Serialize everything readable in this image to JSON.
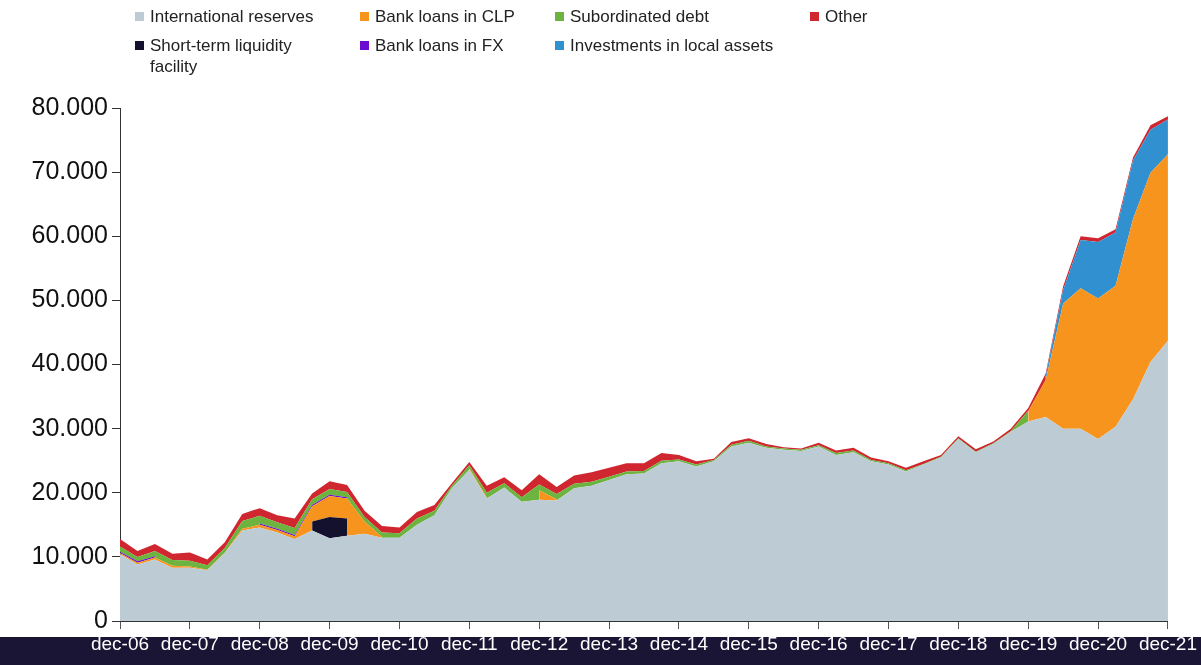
{
  "chart_data": {
    "type": "area",
    "stacked": true,
    "marker": "none",
    "grid": false,
    "legend": "top left",
    "categories": [
      "dec-06",
      null,
      null,
      null,
      "dec-07",
      null,
      null,
      null,
      "dec-08",
      null,
      null,
      null,
      "dec-09",
      null,
      null,
      null,
      "dec-10",
      null,
      null,
      null,
      "dec-11",
      null,
      null,
      null,
      "dec-12",
      null,
      null,
      null,
      "dec-13",
      null,
      null,
      null,
      "dec-14",
      null,
      null,
      null,
      "dec-15",
      null,
      null,
      null,
      "dec-16",
      null,
      null,
      null,
      "dec-17",
      null,
      null,
      null,
      "dec-18",
      null,
      null,
      null,
      "dec-19",
      null,
      null,
      null,
      "dec-20",
      null,
      null,
      null,
      "dec-21"
    ],
    "ylim": [
      0,
      80000
    ],
    "yticks": [
      {
        "value": 0,
        "label": "0"
      },
      {
        "value": 10000,
        "label": "10.000"
      },
      {
        "value": 20000,
        "label": "20.000"
      },
      {
        "value": 30000,
        "label": "30.000"
      },
      {
        "value": 40000,
        "label": "40.000"
      },
      {
        "value": 50000,
        "label": "50.000"
      },
      {
        "value": 60000,
        "label": "60.000"
      },
      {
        "value": 70000,
        "label": "70.000"
      },
      {
        "value": 80000,
        "label": "80.000"
      }
    ],
    "series": [
      {
        "name": "International reserves",
        "color": "#bdcbd5",
        "values": [
          10400,
          8800,
          9600,
          8300,
          8300,
          7900,
          10600,
          14100,
          14600,
          13800,
          12800,
          14100,
          12900,
          13300,
          13600,
          13000,
          13000,
          15000,
          16500,
          20700,
          23600,
          19100,
          20800,
          18600,
          18900,
          18800,
          20700,
          21100,
          22000,
          22900,
          23000,
          24600,
          24900,
          24100,
          24900,
          27200,
          27800,
          27000,
          26700,
          26500,
          27200,
          25900,
          26300,
          24900,
          24400,
          23300,
          24400,
          25500,
          28400,
          26300,
          27600,
          29500,
          31100,
          31800,
          30000,
          30000,
          28400,
          30300,
          34600,
          40400,
          43700
        ]
      },
      {
        "name": "Short-term liquidity facility",
        "color": "#14112e",
        "values": [
          null,
          null,
          null,
          null,
          null,
          null,
          null,
          null,
          null,
          null,
          null,
          1400,
          3300,
          2700,
          null,
          null,
          null,
          null,
          null,
          null,
          null,
          null,
          null,
          null,
          null,
          null,
          null,
          null,
          null,
          null,
          null,
          null,
          null,
          null,
          null,
          null,
          null,
          null,
          null,
          null,
          null,
          null,
          null,
          null,
          null,
          null,
          null,
          null,
          null,
          null,
          null,
          null,
          null,
          null,
          null,
          null,
          null,
          null,
          null,
          null,
          null
        ]
      },
      {
        "name": "Bank loans in CLP",
        "color": "#f7941d",
        "values": [
          200,
          300,
          300,
          300,
          200,
          100,
          100,
          300,
          400,
          400,
          400,
          2400,
          3300,
          3100,
          1900,
          100,
          null,
          null,
          null,
          null,
          200,
          200,
          null,
          null,
          1500,
          200,
          null,
          null,
          null,
          null,
          null,
          null,
          null,
          null,
          null,
          null,
          null,
          null,
          null,
          null,
          null,
          null,
          null,
          null,
          null,
          null,
          null,
          null,
          null,
          null,
          null,
          null,
          1600,
          5800,
          19500,
          21900,
          21900,
          22000,
          28100,
          29500,
          29100
        ]
      },
      {
        "name": "Bank loans in FX",
        "color": "#6a0dd0",
        "values": [
          200,
          200,
          200,
          null,
          null,
          null,
          null,
          null,
          200,
          200,
          200,
          200,
          200,
          200,
          null,
          null,
          null,
          null,
          null,
          null,
          null,
          null,
          null,
          null,
          null,
          null,
          null,
          null,
          null,
          null,
          null,
          null,
          null,
          null,
          null,
          null,
          null,
          null,
          null,
          null,
          null,
          null,
          null,
          null,
          null,
          null,
          null,
          null,
          null,
          null,
          null,
          null,
          null,
          null,
          null,
          null,
          null,
          null,
          null,
          null,
          null
        ]
      },
      {
        "name": "Subordinated debt",
        "color": "#6db33f",
        "values": [
          800,
          700,
          800,
          900,
          900,
          700,
          700,
          1200,
          1200,
          1000,
          1100,
          900,
          900,
          800,
          700,
          700,
          700,
          1000,
          700,
          400,
          500,
          700,
          700,
          700,
          900,
          800,
          700,
          600,
          500,
          400,
          400,
          400,
          300,
          300,
          200,
          300,
          300,
          200,
          200,
          200,
          200,
          300,
          300,
          200,
          200,
          200,
          100,
          100,
          100,
          100,
          100,
          100,
          100,
          null,
          null,
          null,
          null,
          null,
          null,
          null,
          null
        ]
      },
      {
        "name": "Investments in local assets",
        "color": "#3190cf",
        "values": [
          null,
          null,
          null,
          null,
          null,
          null,
          null,
          null,
          null,
          null,
          null,
          null,
          null,
          null,
          null,
          null,
          null,
          null,
          null,
          null,
          null,
          null,
          null,
          null,
          null,
          null,
          null,
          null,
          null,
          null,
          null,
          null,
          null,
          null,
          null,
          null,
          null,
          null,
          null,
          null,
          null,
          null,
          null,
          null,
          null,
          null,
          null,
          null,
          null,
          null,
          null,
          null,
          null,
          600,
          2100,
          7500,
          8800,
          8300,
          9100,
          6700,
          5400
        ]
      },
      {
        "name": "Other",
        "color": "#d0262f",
        "values": [
          1200,
          900,
          1100,
          1000,
          1300,
          900,
          900,
          1100,
          1200,
          1100,
          1500,
          900,
          1200,
          1100,
          1000,
          1000,
          900,
          1000,
          900,
          400,
          500,
          1100,
          900,
          1100,
          1600,
          1100,
          1300,
          1500,
          1400,
          1300,
          1200,
          1200,
          700,
          500,
          200,
          400,
          400,
          400,
          200,
          200,
          400,
          400,
          400,
          400,
          300,
          400,
          400,
          300,
          300,
          400,
          300,
          400,
          400,
          400,
          600,
          600,
          600,
          500,
          500,
          700,
          500
        ]
      }
    ]
  }
}
